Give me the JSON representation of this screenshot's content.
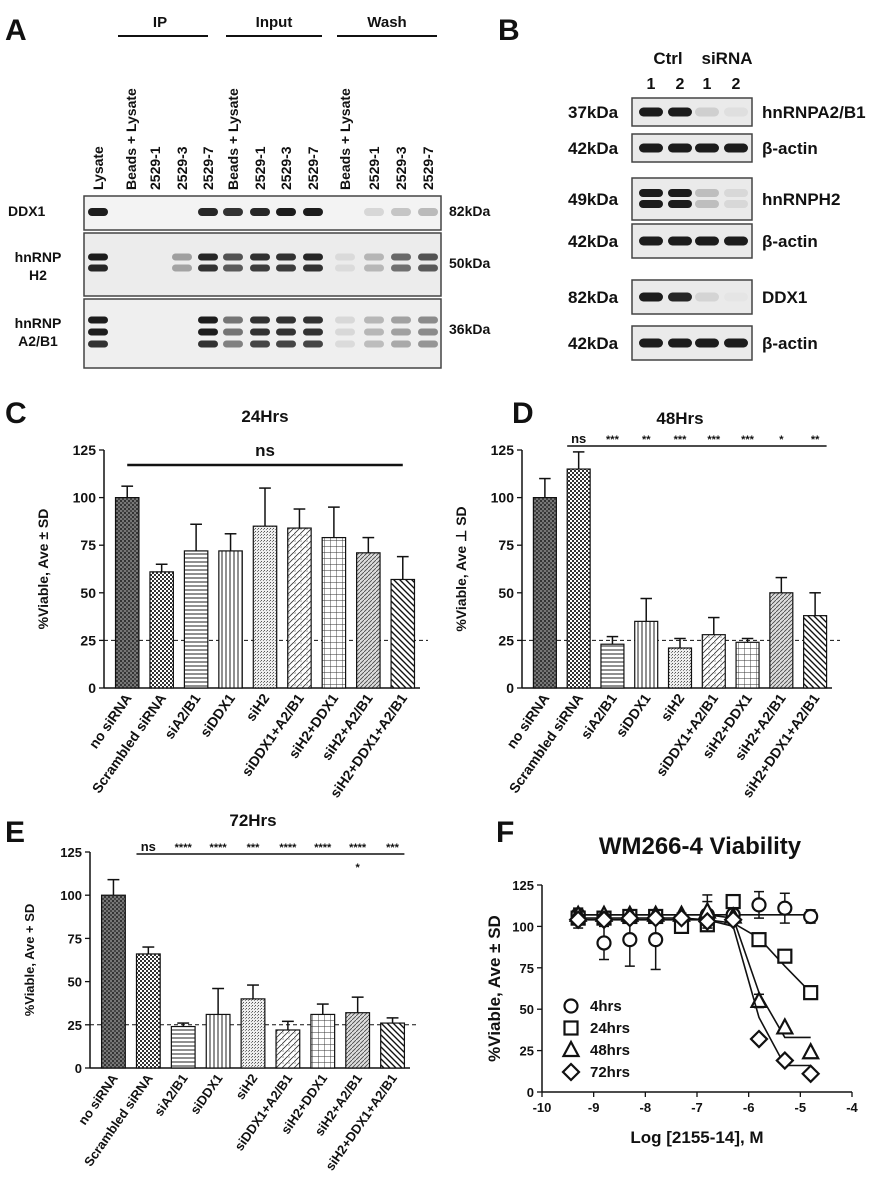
{
  "panels": {
    "A": {
      "label": "A",
      "groups": [
        "IP",
        "Input",
        "Wash"
      ],
      "lanes": [
        "Lysate",
        "Beads + Lysate",
        "2529-1",
        "2529-3",
        "2529-7",
        "Beads + Lysate",
        "2529-1",
        "2529-3",
        "2529-7",
        "Beads + Lysate",
        "2529-1",
        "2529-3",
        "2529-7"
      ],
      "rows": [
        {
          "name": "DDX1",
          "mw": "82kDa"
        },
        {
          "name": "hnRNP H2",
          "mw": "50kDa"
        },
        {
          "name": "hnRNP A2/B1",
          "mw": "36kDa"
        }
      ]
    },
    "B": {
      "label": "B",
      "group_labels": [
        "Ctrl",
        "siRNA"
      ],
      "lane_numbers": [
        "1",
        "2",
        "1",
        "2"
      ],
      "blots": [
        {
          "mw": "37kDa",
          "name": "hnRNPA2/B1"
        },
        {
          "mw": "42kDa",
          "name": "β-actin"
        },
        {
          "mw": "49kDa",
          "name": "hnRNPH2"
        },
        {
          "mw": "42kDa",
          "name": "β-actin"
        },
        {
          "mw": "82kDa",
          "name": "DDX1"
        },
        {
          "mw": "42kDa",
          "name": "β-actin"
        }
      ]
    },
    "C": {
      "label": "C"
    },
    "D": {
      "label": "D"
    },
    "E": {
      "label": "E"
    },
    "F": {
      "label": "F"
    }
  },
  "chart_data": [
    {
      "panel": "C",
      "type": "bar",
      "title": "24Hrs",
      "ylabel": "%Viable, Ave ± SD",
      "ylim": [
        0,
        125
      ],
      "yticks": [
        0,
        25,
        50,
        75,
        100,
        125
      ],
      "reference_line": 25,
      "categories": [
        "no siRNA",
        "Scrambled siRNA",
        "siA2/B1",
        "siDDX1",
        "siH2",
        "siDDX1+A2/B1",
        "siH2+DDX1",
        "siH2+A2/B1",
        "siH2+DDX1+A2/B1"
      ],
      "values": [
        100,
        61,
        72,
        72,
        85,
        84,
        79,
        71,
        57
      ],
      "errors": [
        6,
        4,
        14,
        9,
        20,
        10,
        16,
        8,
        12
      ],
      "significance": [
        {
          "text": "ns"
        }
      ]
    },
    {
      "panel": "D",
      "type": "bar",
      "title": "48Hrs",
      "ylabel": "%Viable, Ave ⊥ SD",
      "ylim": [
        0,
        125
      ],
      "yticks": [
        0,
        25,
        50,
        75,
        100,
        125
      ],
      "reference_line": 25,
      "categories": [
        "no siRNA",
        "Scrambled siRNA",
        "siA2/B1",
        "siDDX1",
        "siH2",
        "siDDX1+A2/B1",
        "siH2+DDX1",
        "siH2+A2/B1",
        "siH2+DDX1+A2/B1"
      ],
      "values": [
        100,
        115,
        23,
        35,
        21,
        28,
        24,
        50,
        38
      ],
      "errors": [
        10,
        9,
        4,
        12,
        5,
        9,
        2,
        8,
        12
      ],
      "significance": [
        "ns",
        "***",
        "**",
        "***",
        "***",
        "***",
        "*",
        "**"
      ]
    },
    {
      "panel": "E",
      "type": "bar",
      "title": "72Hrs",
      "ylabel": "%Viable, Ave + SD",
      "ylim": [
        0,
        125
      ],
      "yticks": [
        0,
        25,
        50,
        75,
        100,
        125
      ],
      "reference_line": 25,
      "categories": [
        "no siRNA",
        "Scrambled siRNA",
        "siA2/B1",
        "siDDX1",
        "siH2",
        "siDDX1+A2/B1",
        "siH2+DDX1",
        "siH2+A2/B1",
        "siH2+DDX1+A2/B1"
      ],
      "values": [
        100,
        66,
        24,
        31,
        40,
        22,
        31,
        32,
        26
      ],
      "errors": [
        9,
        4,
        2,
        15,
        8,
        5,
        6,
        9,
        3
      ],
      "significance": [
        "ns",
        "****",
        "****",
        "***",
        "****",
        "****",
        "****",
        "***",
        "*"
      ]
    },
    {
      "panel": "F",
      "type": "scatter",
      "title": "WM266-4 Viability",
      "xlabel": "Log [2155-14], M",
      "ylabel": "%Viable, Ave ± SD",
      "xlim": [
        -10,
        -4
      ],
      "ylim": [
        0,
        125
      ],
      "xticks": [
        -10,
        -9,
        -8,
        -7,
        -6,
        -5,
        -4
      ],
      "yticks": [
        0,
        25,
        50,
        75,
        100,
        125
      ],
      "legend_position": "bottom-left",
      "x": [
        -9.3,
        -8.8,
        -8.3,
        -7.8,
        -7.3,
        -6.8,
        -6.3,
        -5.8,
        -5.3,
        -4.8
      ],
      "series": [
        {
          "name": "4hrs",
          "marker": "circle",
          "values": [
            107,
            90,
            92,
            92,
            103,
            107,
            107,
            113,
            111,
            106
          ],
          "errors": [
            4,
            10,
            16,
            18,
            5,
            8,
            5,
            8,
            9,
            4
          ],
          "fit": [
            107,
            107,
            107,
            107,
            107,
            107,
            107,
            107,
            107,
            107
          ]
        },
        {
          "name": "24hrs",
          "marker": "square",
          "values": [
            105,
            105,
            106,
            106,
            100,
            101,
            115,
            92,
            82,
            60
          ],
          "errors": [
            6,
            4,
            3,
            3,
            3,
            3,
            2,
            3,
            3,
            3
          ],
          "fit": [
            105,
            105,
            105,
            105,
            105,
            104,
            102,
            93,
            76,
            60
          ]
        },
        {
          "name": "48hrs",
          "marker": "triangle",
          "values": [
            107,
            107,
            107,
            107,
            107,
            109,
            106,
            55,
            39,
            24
          ],
          "errors": [
            2,
            2,
            2,
            2,
            2,
            10,
            3,
            4,
            3,
            3
          ],
          "fit": [
            107,
            107,
            107,
            107,
            107,
            107,
            105,
            60,
            33,
            33
          ]
        },
        {
          "name": "72hrs",
          "marker": "diamond",
          "values": [
            104,
            104,
            105,
            105,
            105,
            103,
            104,
            32,
            19,
            11
          ],
          "errors": [
            2,
            2,
            2,
            2,
            2,
            2,
            3,
            3,
            2,
            2
          ],
          "fit": [
            104,
            104,
            104,
            104,
            104,
            104,
            100,
            45,
            16,
            16
          ]
        }
      ]
    }
  ]
}
